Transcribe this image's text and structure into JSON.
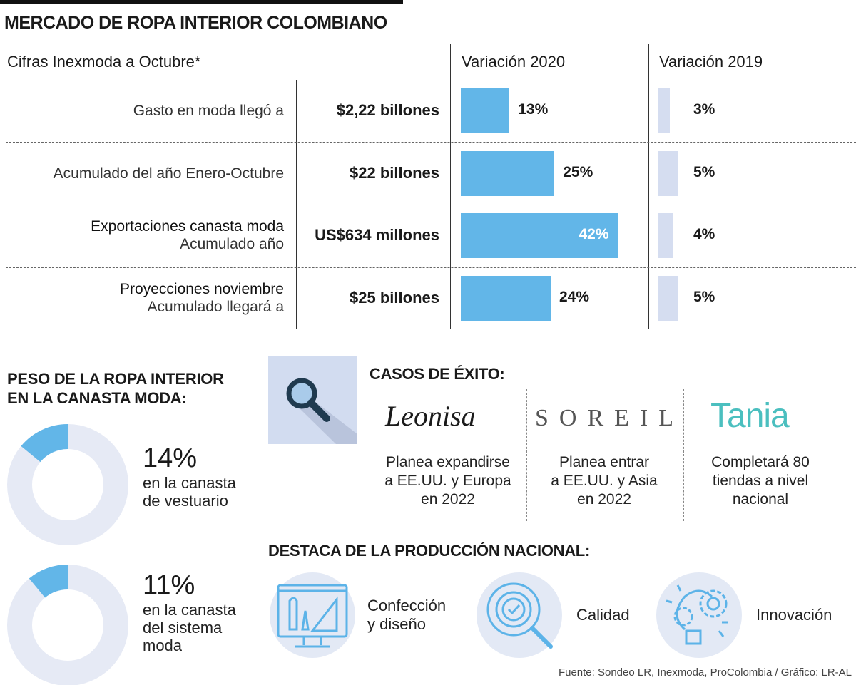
{
  "title": "MERCADO DE ROPA INTERIOR COLOMBIANO",
  "table": {
    "subtitle": "Cifras Inexmoda a Octubre*",
    "col_2020": "Variación 2020",
    "col_2019": "Variación 2019",
    "rows": [
      {
        "label": "Gasto en moda llegó a",
        "label2": "",
        "amount": "$2,22 billones",
        "v2020": 13,
        "v2020_label": "13%",
        "v2019": 3,
        "v2019_label": "3%"
      },
      {
        "label": "Acumulado del año Enero-Octubre",
        "label2": "",
        "amount": "$22 billones",
        "v2020": 25,
        "v2020_label": "25%",
        "v2019": 5,
        "v2019_label": "5%"
      },
      {
        "label": "Exportaciones canasta moda",
        "label2": "Acumulado año",
        "amount": "US$634 millones",
        "v2020": 42,
        "v2020_label": "42%",
        "v2019": 4,
        "v2019_label": "4%"
      },
      {
        "label": "Proyecciones noviembre",
        "label2": "Acumulado llegará a",
        "amount": "$25 billones",
        "v2020": 24,
        "v2020_label": "24%",
        "v2019": 5,
        "v2019_label": "5%"
      }
    ]
  },
  "chart_data": [
    {
      "type": "bar",
      "orientation": "horizontal",
      "title": "Variación 2020",
      "categories": [
        "Gasto en moda llegó a",
        "Acumulado del año Enero-Octubre",
        "Exportaciones canasta moda",
        "Proyecciones noviembre"
      ],
      "values": [
        13,
        25,
        42,
        24
      ],
      "unit": "%",
      "color": "#62b6e8"
    },
    {
      "type": "bar",
      "orientation": "horizontal",
      "title": "Variación 2019",
      "categories": [
        "Gasto en moda llegó a",
        "Acumulado del año Enero-Octubre",
        "Exportaciones canasta moda",
        "Proyecciones noviembre"
      ],
      "values": [
        3,
        5,
        4,
        5
      ],
      "unit": "%",
      "color": "#d5ddf0"
    },
    {
      "type": "pie",
      "donut": true,
      "values": [
        14,
        86
      ],
      "label": "14%",
      "color": "#62b6e8",
      "rest_color": "#e6eaf5"
    },
    {
      "type": "pie",
      "donut": true,
      "values": [
        11,
        89
      ],
      "label": "11%",
      "color": "#62b6e8",
      "rest_color": "#e6eaf5"
    }
  ],
  "peso": {
    "title_line1": "PESO DE LA ROPA INTERIOR",
    "title_line2": "EN LA CANASTA MODA:",
    "items": [
      {
        "pct": "14%",
        "value": 14,
        "line1": "en la canasta",
        "line2": "de vestuario"
      },
      {
        "pct": "11%",
        "value": 11,
        "line1": "en la canasta",
        "line2": "del sistema",
        "line3": "moda"
      }
    ]
  },
  "casos": {
    "title": "CASOS DE ÉXITO:",
    "icon": "magnifier-icon",
    "items": [
      {
        "brand": "Leonisa",
        "l1": "Planea expandirse",
        "l2": "a EE.UU. y Europa",
        "l3": "en 2022"
      },
      {
        "brand": "SOREIL",
        "l1": "Planea entrar",
        "l2": "a EE.UU. y Asia",
        "l3": "en 2022"
      },
      {
        "brand": "Tania",
        "l1": "Completará 80",
        "l2": "tiendas a nivel",
        "l3": "nacional"
      }
    ]
  },
  "destaca": {
    "title": "DESTACA DE LA PRODUCCIÓN NACIONAL:",
    "items": [
      {
        "icon": "design-monitor-icon",
        "l1": "Confección",
        "l2": "y diseño"
      },
      {
        "icon": "quality-magnifier-icon",
        "l1": "Calidad",
        "l2": ""
      },
      {
        "icon": "innovation-bulb-gear-icon",
        "l1": "Innovación",
        "l2": ""
      }
    ]
  },
  "source": "Fuente: Sondeo LR, Inexmoda, ProColombia / Gráfico: LR-AL",
  "colors": {
    "accent": "#62b6e8",
    "light": "#d5ddf0",
    "donut_rest": "#e6eaf5",
    "tania": "#4bbfbf"
  }
}
